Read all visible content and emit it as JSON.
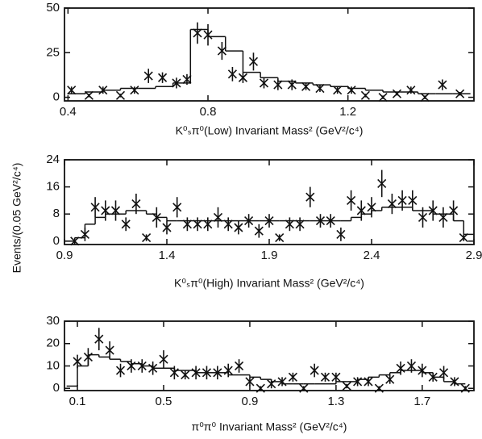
{
  "chart_data": [
    {
      "type": "scatter",
      "xlabel": "K⁰ₛπ⁰(Low) Invariant Mass² (GeV²/c⁴)",
      "xlim": [
        0.39,
        1.56
      ],
      "ylim": [
        -2,
        50
      ],
      "xticks": [
        0.4,
        0.8,
        1.2
      ],
      "yticks": [
        0,
        25,
        50
      ],
      "color": "#111111",
      "x": [
        0.41,
        0.46,
        0.5,
        0.55,
        0.59,
        0.63,
        0.67,
        0.71,
        0.74,
        0.77,
        0.8,
        0.84,
        0.87,
        0.9,
        0.93,
        0.96,
        1.0,
        1.04,
        1.08,
        1.12,
        1.17,
        1.21,
        1.25,
        1.3,
        1.34,
        1.38,
        1.42,
        1.47,
        1.52
      ],
      "values": [
        4,
        1,
        4,
        1,
        4,
        12,
        11,
        8,
        10,
        36,
        35,
        26,
        13,
        11,
        20,
        8,
        7,
        7,
        6,
        5,
        4,
        4,
        1,
        0,
        2,
        4,
        0,
        7,
        2
      ],
      "errors": [
        2,
        1,
        2,
        1,
        2,
        4,
        3,
        3,
        3,
        6,
        6,
        5,
        4,
        3,
        5,
        3,
        3,
        3,
        2,
        2,
        2,
        2,
        1,
        1,
        1,
        2,
        1,
        3,
        1
      ],
      "histogram": {
        "bins": [
          0.4,
          0.45,
          0.5,
          0.55,
          0.6,
          0.65,
          0.7,
          0.75,
          0.8,
          0.85,
          0.9,
          0.95,
          1.0,
          1.05,
          1.1,
          1.15,
          1.2,
          1.25,
          1.3,
          1.35,
          1.4,
          1.45,
          1.5,
          1.55
        ],
        "counts": [
          2,
          3,
          4,
          5,
          5,
          6,
          8,
          38,
          34,
          26,
          14,
          11,
          9,
          8,
          7,
          6,
          5,
          4,
          3,
          3,
          2,
          2,
          2
        ]
      }
    },
    {
      "type": "scatter",
      "xlabel": "K⁰ₛπ⁰(High) Invariant Mass² (GeV²/c⁴)",
      "ylabel": "Events/(0.05 GeV²/c⁴)",
      "xlim": [
        0.9,
        2.9
      ],
      "ylim": [
        -1,
        24
      ],
      "xticks": [
        0.9,
        1.4,
        1.9,
        2.4,
        2.9
      ],
      "yticks": [
        0,
        8,
        16,
        24
      ],
      "color": "#111111",
      "x": [
        0.95,
        1,
        1.05,
        1.1,
        1.15,
        1.2,
        1.25,
        1.3,
        1.35,
        1.4,
        1.45,
        1.5,
        1.55,
        1.6,
        1.65,
        1.7,
        1.75,
        1.8,
        1.85,
        1.9,
        1.95,
        2,
        2.05,
        2.1,
        2.15,
        2.2,
        2.25,
        2.3,
        2.35,
        2.4,
        2.45,
        2.5,
        2.55,
        2.6,
        2.65,
        2.7,
        2.75,
        2.8,
        2.85
      ],
      "values": [
        0,
        2,
        10,
        9,
        9,
        5,
        11,
        1,
        7,
        4,
        10,
        5,
        5,
        5,
        7,
        5,
        4,
        6,
        3,
        6,
        1,
        5,
        5,
        13,
        6,
        6,
        2,
        12,
        9,
        10,
        17,
        11,
        12,
        12,
        7,
        9,
        7,
        9,
        1
      ],
      "errors": [
        1,
        2,
        3,
        3,
        3,
        2,
        3,
        1,
        3,
        2,
        3,
        2,
        2,
        2,
        3,
        2,
        2,
        2,
        2,
        2,
        1,
        2,
        2,
        3,
        2,
        2,
        2,
        3,
        3,
        3,
        4,
        3,
        3,
        3,
        3,
        3,
        3,
        3,
        1
      ],
      "histogram": {
        "bins": [
          0.9,
          0.95,
          1,
          1.05,
          1.1,
          1.15,
          1.2,
          1.25,
          1.3,
          1.35,
          1.4,
          1.45,
          1.5,
          1.55,
          1.6,
          1.65,
          1.7,
          1.75,
          1.8,
          1.85,
          1.9,
          1.95,
          2,
          2.05,
          2.1,
          2.15,
          2.2,
          2.25,
          2.3,
          2.35,
          2.4,
          2.45,
          2.5,
          2.55,
          2.6,
          2.65,
          2.7,
          2.75,
          2.8,
          2.85,
          2.9
        ],
        "counts": [
          0,
          1,
          5,
          7,
          8,
          8,
          9,
          9,
          8,
          7,
          6,
          6,
          6,
          6,
          6,
          6,
          6,
          6,
          6,
          6,
          6,
          6,
          6,
          6,
          6,
          6,
          6,
          6,
          7,
          8,
          9,
          10,
          10,
          10,
          9,
          9,
          8,
          8,
          6,
          2
        ]
      }
    },
    {
      "type": "scatter",
      "xlabel": "π⁰π⁰ Invariant Mass² (GeV²/c⁴)",
      "xlim": [
        0.04,
        1.94
      ],
      "ylim": [
        -1,
        30
      ],
      "xticks": [
        0.1,
        0.5,
        0.9,
        1.3,
        1.7
      ],
      "yticks": [
        0,
        10,
        20,
        30
      ],
      "color": "#111111",
      "x": [
        0.1,
        0.15,
        0.2,
        0.25,
        0.3,
        0.35,
        0.4,
        0.45,
        0.5,
        0.55,
        0.6,
        0.65,
        0.7,
        0.75,
        0.8,
        0.85,
        0.9,
        0.95,
        1,
        1.05,
        1.1,
        1.15,
        1.2,
        1.25,
        1.3,
        1.35,
        1.4,
        1.45,
        1.5,
        1.55,
        1.6,
        1.65,
        1.7,
        1.75,
        1.8,
        1.85,
        1.9
      ],
      "values": [
        12,
        14,
        22,
        17,
        8,
        10,
        10,
        9,
        13,
        7,
        6,
        7,
        7,
        7,
        8,
        10,
        3,
        0,
        2,
        3,
        5,
        0,
        8,
        5,
        5,
        1,
        3,
        3,
        0,
        4,
        9,
        10,
        8,
        5,
        7,
        3,
        0
      ],
      "errors": [
        3,
        4,
        5,
        4,
        3,
        3,
        3,
        3,
        4,
        3,
        2,
        3,
        3,
        3,
        3,
        3,
        2,
        1,
        2,
        2,
        2,
        1,
        3,
        2,
        2,
        1,
        2,
        2,
        1,
        2,
        3,
        3,
        3,
        2,
        3,
        2,
        1
      ],
      "histogram": {
        "bins": [
          0.05,
          0.1,
          0.15,
          0.2,
          0.25,
          0.3,
          0.35,
          0.4,
          0.45,
          0.5,
          0.55,
          0.6,
          0.65,
          0.7,
          0.75,
          0.8,
          0.85,
          0.9,
          0.95,
          1,
          1.05,
          1.1,
          1.15,
          1.2,
          1.25,
          1.3,
          1.35,
          1.4,
          1.45,
          1.5,
          1.55,
          1.6,
          1.65,
          1.7,
          1.75,
          1.8,
          1.85,
          1.9
        ],
        "counts": [
          1,
          10,
          15,
          14,
          13,
          12,
          11,
          10,
          9,
          9,
          8,
          8,
          7,
          7,
          7,
          6,
          6,
          5,
          4,
          3,
          2,
          2,
          2,
          2,
          2,
          3,
          3,
          4,
          5,
          6,
          7,
          8,
          8,
          7,
          5,
          3,
          2
        ]
      }
    }
  ]
}
